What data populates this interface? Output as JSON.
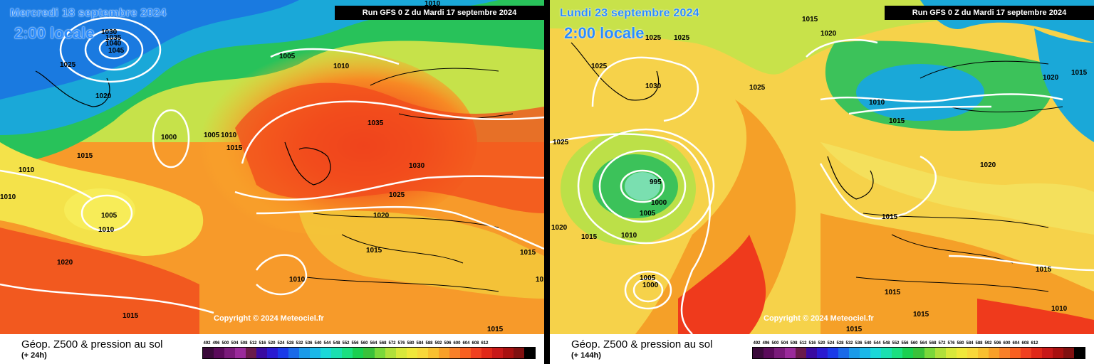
{
  "panels": [
    {
      "date": "Mercredi 18 septembre 2024",
      "time": "2:00 locale",
      "run": "Run GFS 0 Z du Mardi 17 septembre 2024",
      "copyright": "Copyright © 2024 Meteociel.fr",
      "title": "Géop. Z500 & pression au sol",
      "step": "(+ 24h)",
      "isobars": [
        "1030",
        "1035",
        "1040",
        "1045",
        "1025",
        "1020",
        "1005",
        "1010",
        "1000",
        "1005",
        "1010",
        "1015",
        "1015",
        "1010",
        "1010",
        "1005",
        "1010",
        "1035",
        "1030",
        "1025",
        "1020",
        "1015",
        "1015",
        "1020",
        "1010",
        "1015",
        "1015",
        "1015",
        "1010"
      ]
    },
    {
      "date": "Lundi 23 septembre 2024",
      "time": "2:00 locale",
      "run": "Run GFS 0 Z du Mardi 17 septembre 2024",
      "copyright": "Copyright © 2024 Meteociel.fr",
      "title": "Géop. Z500 & pression au sol",
      "step": "(+ 144h)",
      "isobars": [
        "1015",
        "1020",
        "1025",
        "1025",
        "1025",
        "1015",
        "1020",
        "1030",
        "1025",
        "1010",
        "1015",
        "1025",
        "1020",
        "995",
        "1000",
        "1005",
        "1015",
        "1020",
        "1015",
        "1010",
        "1015",
        "1005",
        "1000",
        "1015",
        "1010",
        "1015",
        "1015"
      ]
    }
  ],
  "scale": {
    "ticks": [
      "492",
      "496",
      "500",
      "504",
      "508",
      "512",
      "516",
      "520",
      "524",
      "528",
      "532",
      "536",
      "540",
      "544",
      "548",
      "552",
      "556",
      "560",
      "564",
      "568",
      "572",
      "576",
      "580",
      "584",
      "588",
      "592",
      "596",
      "600",
      "604",
      "608",
      "612"
    ],
    "colors": [
      "#3a0a3a",
      "#5a0a5a",
      "#7a1a7a",
      "#9a2a9a",
      "#6a1a4a",
      "#3a0aa0",
      "#2a1ad0",
      "#1a3ae8",
      "#1a6ae8",
      "#1a9ae8",
      "#1ab8e8",
      "#1ad8d8",
      "#1ae0b0",
      "#1ae080",
      "#1ad050",
      "#3ac23a",
      "#7ad83a",
      "#b0e03a",
      "#d8e83a",
      "#f0e83a",
      "#f8d83a",
      "#f8c030",
      "#f8a028",
      "#f88028",
      "#f86020",
      "#f04020",
      "#e02818",
      "#c81818",
      "#a81010",
      "#801010",
      "#000000"
    ]
  }
}
